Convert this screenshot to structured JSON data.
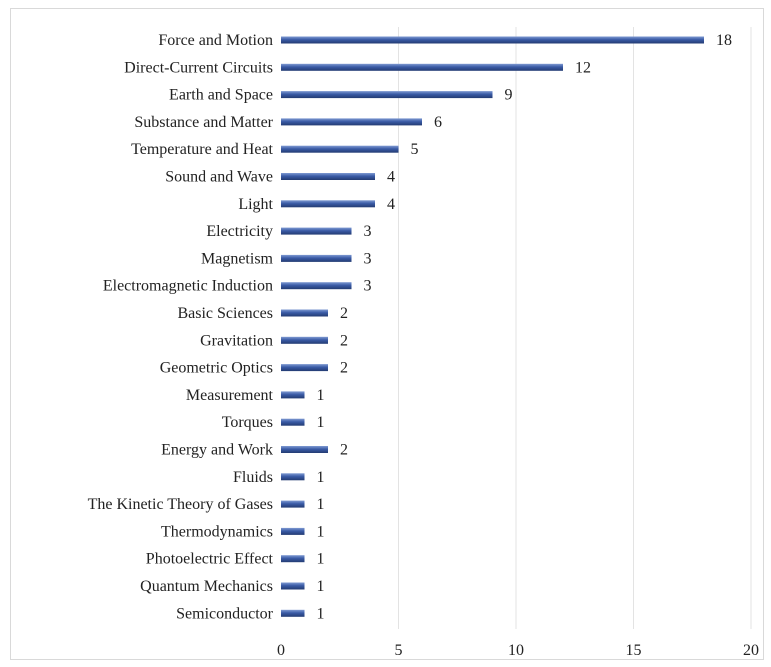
{
  "chart_data": {
    "type": "bar",
    "orientation": "horizontal",
    "categories": [
      "Force and Motion",
      "Direct-Current Circuits",
      "Earth and Space",
      "Substance and Matter",
      "Temperature and Heat",
      "Sound and Wave",
      "Light",
      "Electricity",
      "Magnetism",
      "Electromagnetic Induction",
      "Basic Sciences",
      "Gravitation",
      "Geometric Optics",
      "Measurement",
      "Torques",
      "Energy and Work",
      "Fluids",
      "The Kinetic Theory of Gases",
      "Thermodynamics",
      "Photoelectric Effect",
      "Quantum Mechanics",
      "Semiconductor"
    ],
    "values": [
      18,
      12,
      9,
      6,
      5,
      4,
      4,
      3,
      3,
      3,
      2,
      2,
      2,
      1,
      1,
      2,
      1,
      1,
      1,
      1,
      1,
      1
    ],
    "title": "",
    "xlabel": "",
    "ylabel": "",
    "xlim": [
      0,
      20
    ],
    "xticks": [
      "0",
      "5",
      "10",
      "15",
      "20"
    ],
    "grid": "vertical major gridlines",
    "legend": "none",
    "data_labels": true,
    "colors": {
      "bar": "#3a5ba6",
      "bar_highlight": "#7f9ad2",
      "bar_shadow": "#233b72",
      "grid": "#e3e3e3",
      "text": "#222222"
    }
  }
}
